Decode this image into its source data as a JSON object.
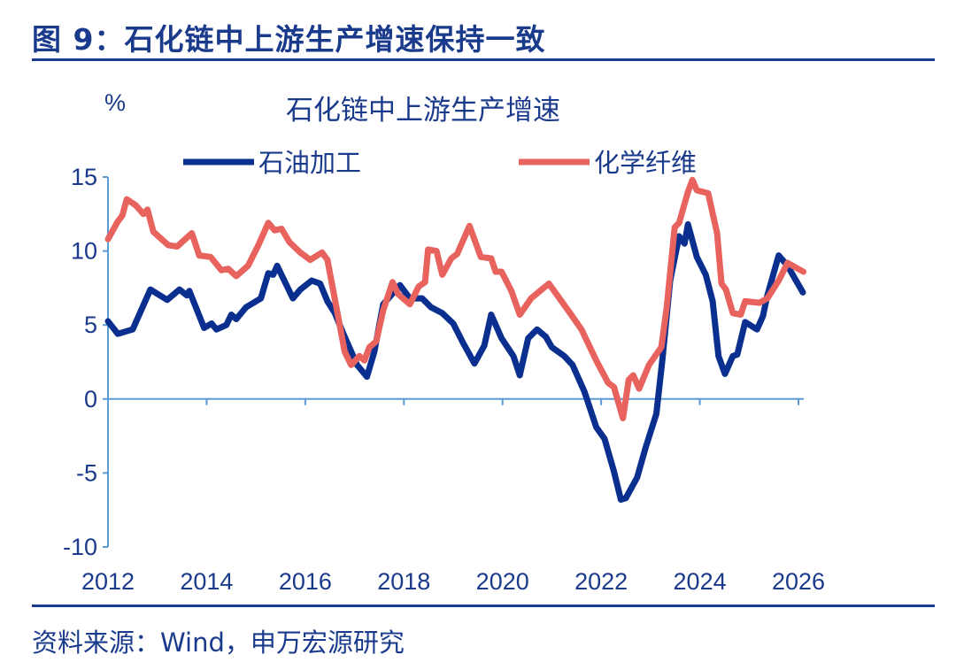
{
  "figure_title": "图 9：石化链中上游生产增速保持一致",
  "source": "资料来源：Wind，申万宏源研究",
  "chart_data": {
    "type": "line",
    "title": "石化链中上游生产增速",
    "ylabel": "%",
    "xlabel": "",
    "xlim": [
      2012,
      2026
    ],
    "ylim": [
      -10,
      15
    ],
    "x_ticks": [
      "2012",
      "2014",
      "2016",
      "2018",
      "2020",
      "2022",
      "2024",
      "2026"
    ],
    "y_ticks": [
      "15",
      "10",
      "5",
      "0",
      "-5",
      "-10"
    ],
    "grid": false,
    "legend_placement": "top",
    "series": [
      {
        "name": "石油加工",
        "color": "#0b2f8f",
        "points": [
          [
            2012.0,
            5.25
          ],
          [
            2012.2,
            4.4
          ],
          [
            2012.5,
            4.7
          ],
          [
            2012.86,
            7.4
          ],
          [
            2013.2,
            6.7
          ],
          [
            2013.45,
            7.4
          ],
          [
            2013.6,
            7.0
          ],
          [
            2013.65,
            7.3
          ],
          [
            2013.95,
            4.8
          ],
          [
            2014.1,
            5.1
          ],
          [
            2014.2,
            4.7
          ],
          [
            2014.4,
            5.0
          ],
          [
            2014.5,
            5.7
          ],
          [
            2014.6,
            5.4
          ],
          [
            2014.8,
            6.2
          ],
          [
            2015.1,
            6.8
          ],
          [
            2015.25,
            8.5
          ],
          [
            2015.35,
            8.4
          ],
          [
            2015.43,
            9.0
          ],
          [
            2015.75,
            6.8
          ],
          [
            2015.9,
            7.4
          ],
          [
            2016.13,
            8.0
          ],
          [
            2016.3,
            7.8
          ],
          [
            2016.45,
            6.6
          ],
          [
            2016.6,
            5.8
          ],
          [
            2016.8,
            4.2
          ],
          [
            2017.05,
            2.3
          ],
          [
            2017.25,
            1.5
          ],
          [
            2017.4,
            3.2
          ],
          [
            2017.58,
            6.4
          ],
          [
            2017.92,
            7.7
          ],
          [
            2018.12,
            6.8
          ],
          [
            2018.37,
            6.8
          ],
          [
            2018.55,
            6.2
          ],
          [
            2018.78,
            5.8
          ],
          [
            2019.0,
            5.1
          ],
          [
            2019.2,
            3.8
          ],
          [
            2019.43,
            2.4
          ],
          [
            2019.63,
            3.6
          ],
          [
            2019.77,
            5.7
          ],
          [
            2019.98,
            4.1
          ],
          [
            2020.22,
            2.9
          ],
          [
            2020.35,
            1.6
          ],
          [
            2020.52,
            4.1
          ],
          [
            2020.7,
            4.7
          ],
          [
            2020.88,
            4.2
          ],
          [
            2021.0,
            3.5
          ],
          [
            2021.25,
            2.9
          ],
          [
            2021.42,
            2.3
          ],
          [
            2021.66,
            0.5
          ],
          [
            2021.9,
            -1.9
          ],
          [
            2022.07,
            -2.7
          ],
          [
            2022.26,
            -4.9
          ],
          [
            2022.4,
            -6.8
          ],
          [
            2022.5,
            -6.7
          ],
          [
            2022.73,
            -5.3
          ],
          [
            2022.9,
            -3.3
          ],
          [
            2023.12,
            -1.0
          ],
          [
            2023.24,
            2.6
          ],
          [
            2023.4,
            8.0
          ],
          [
            2023.58,
            11.0
          ],
          [
            2023.69,
            10.5
          ],
          [
            2023.76,
            11.8
          ],
          [
            2023.94,
            9.6
          ],
          [
            2024.12,
            8.4
          ],
          [
            2024.26,
            6.6
          ],
          [
            2024.38,
            2.9
          ],
          [
            2024.51,
            1.7
          ],
          [
            2024.67,
            2.9
          ],
          [
            2024.76,
            3.0
          ],
          [
            2024.92,
            5.2
          ],
          [
            2025.16,
            4.7
          ],
          [
            2025.28,
            5.6
          ],
          [
            2025.37,
            7.0
          ],
          [
            2025.6,
            9.7
          ],
          [
            2025.78,
            9.0
          ],
          [
            2026.09,
            7.2
          ]
        ]
      },
      {
        "name": "化学纤维",
        "color": "#e8625e",
        "points": [
          [
            2012.0,
            10.8
          ],
          [
            2012.2,
            12.0
          ],
          [
            2012.29,
            12.4
          ],
          [
            2012.38,
            13.5
          ],
          [
            2012.56,
            13.1
          ],
          [
            2012.72,
            12.5
          ],
          [
            2012.8,
            12.8
          ],
          [
            2012.92,
            11.3
          ],
          [
            2013.22,
            10.4
          ],
          [
            2013.4,
            10.3
          ],
          [
            2013.7,
            11.2
          ],
          [
            2013.85,
            9.7
          ],
          [
            2014.08,
            9.6
          ],
          [
            2014.3,
            8.7
          ],
          [
            2014.44,
            8.8
          ],
          [
            2014.6,
            8.3
          ],
          [
            2014.84,
            9.0
          ],
          [
            2015.05,
            10.4
          ],
          [
            2015.25,
            11.9
          ],
          [
            2015.38,
            11.4
          ],
          [
            2015.52,
            11.5
          ],
          [
            2015.68,
            10.6
          ],
          [
            2015.9,
            9.9
          ],
          [
            2016.1,
            9.4
          ],
          [
            2016.34,
            9.9
          ],
          [
            2016.45,
            9.4
          ],
          [
            2016.63,
            6.2
          ],
          [
            2016.8,
            3.2
          ],
          [
            2016.93,
            2.3
          ],
          [
            2017.1,
            2.9
          ],
          [
            2017.2,
            2.6
          ],
          [
            2017.3,
            3.5
          ],
          [
            2017.44,
            3.9
          ],
          [
            2017.58,
            6.0
          ],
          [
            2017.77,
            7.9
          ],
          [
            2017.88,
            7.1
          ],
          [
            2018.12,
            6.4
          ],
          [
            2018.3,
            7.6
          ],
          [
            2018.43,
            7.9
          ],
          [
            2018.49,
            10.1
          ],
          [
            2018.66,
            10.0
          ],
          [
            2018.78,
            8.4
          ],
          [
            2018.96,
            9.5
          ],
          [
            2019.08,
            9.8
          ],
          [
            2019.33,
            11.7
          ],
          [
            2019.56,
            9.6
          ],
          [
            2019.77,
            9.5
          ],
          [
            2019.86,
            8.6
          ],
          [
            2019.98,
            8.6
          ],
          [
            2020.18,
            7.3
          ],
          [
            2020.35,
            5.7
          ],
          [
            2020.58,
            6.8
          ],
          [
            2020.94,
            7.8
          ],
          [
            2021.35,
            5.9
          ],
          [
            2021.6,
            4.7
          ],
          [
            2021.9,
            2.6
          ],
          [
            2022.14,
            1.1
          ],
          [
            2022.26,
            0.8
          ],
          [
            2022.44,
            -1.3
          ],
          [
            2022.56,
            1.3
          ],
          [
            2022.65,
            1.6
          ],
          [
            2022.77,
            0.7
          ],
          [
            2022.97,
            2.3
          ],
          [
            2023.22,
            3.5
          ],
          [
            2023.33,
            6.2
          ],
          [
            2023.49,
            11.6
          ],
          [
            2023.58,
            11.9
          ],
          [
            2023.76,
            14.0
          ],
          [
            2023.85,
            14.8
          ],
          [
            2023.94,
            14.1
          ],
          [
            2024.17,
            13.9
          ],
          [
            2024.35,
            11.2
          ],
          [
            2024.44,
            7.8
          ],
          [
            2024.53,
            7.4
          ],
          [
            2024.67,
            5.8
          ],
          [
            2024.83,
            5.7
          ],
          [
            2024.92,
            6.6
          ],
          [
            2025.21,
            6.5
          ],
          [
            2025.37,
            6.8
          ],
          [
            2025.6,
            8.0
          ],
          [
            2025.78,
            9.2
          ],
          [
            2026.1,
            8.6
          ]
        ]
      }
    ]
  }
}
